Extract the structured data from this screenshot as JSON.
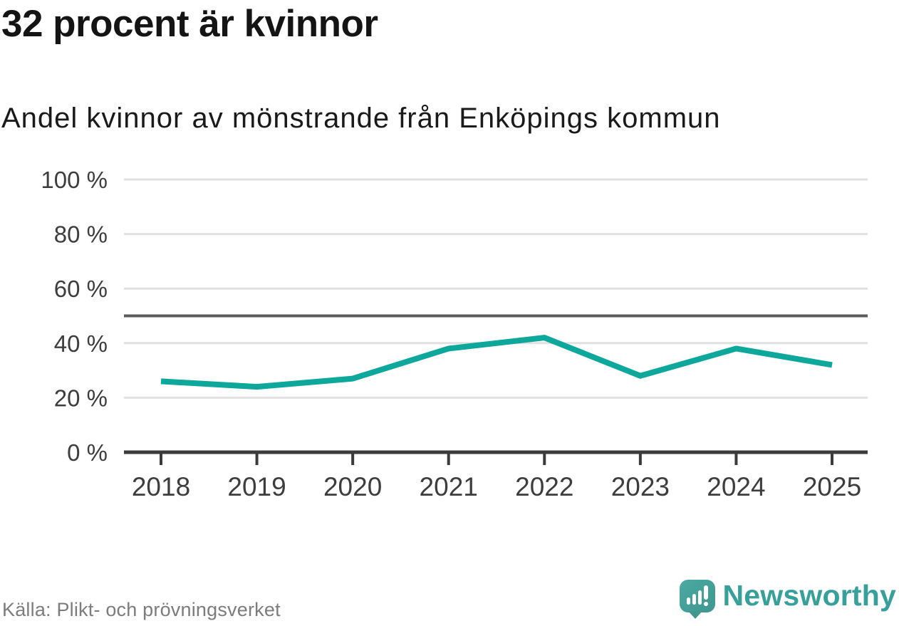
{
  "header": {
    "title": "32 procent är kvinnor",
    "subtitle": "Andel kvinnor av mönstrande från Enköpings kommun"
  },
  "chart_data": {
    "type": "line",
    "title": "32 procent är kvinnor",
    "subtitle": "Andel kvinnor av mönstrande från Enköpings kommun",
    "categories": [
      "2018",
      "2019",
      "2020",
      "2021",
      "2022",
      "2023",
      "2024",
      "2025"
    ],
    "values": [
      26,
      24,
      27,
      38,
      42,
      28,
      38,
      32
    ],
    "unit": "%",
    "xlabel": "",
    "ylabel": "",
    "ylim": [
      0,
      100
    ],
    "yticks": [
      0,
      20,
      40,
      60,
      80,
      100
    ],
    "ytick_labels": [
      "0 %",
      "20 %",
      "40 %",
      "60 %",
      "80 %",
      "100 %"
    ],
    "reference_line": 50,
    "grid": true,
    "legend": "none",
    "line_color": "#0da79c",
    "reference_color": "#5b5b5b",
    "axis_color": "#3b3b3b",
    "grid_color": "#e1e1e1",
    "label_color": "#3d3d3d"
  },
  "footer": {
    "source": "Källa: Plikt- och prövningsverket",
    "brand": "Newsworthy",
    "brand_color": "#37a09a"
  },
  "icons": {
    "logo_icon": "speech-bubble-bar-chart-exclamation"
  }
}
